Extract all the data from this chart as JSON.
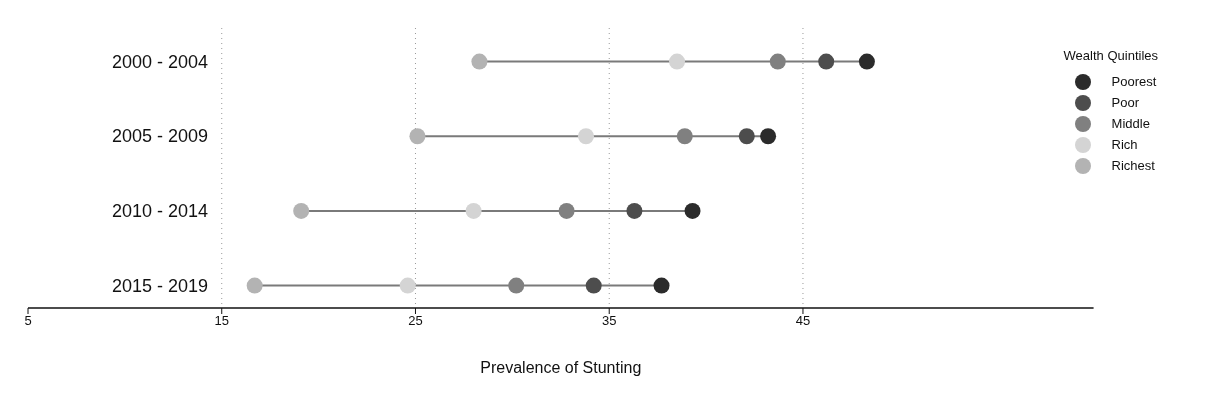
{
  "chart_data": {
    "type": "scatter",
    "orientation": "horizontal",
    "xlabel": "Prevalence of Stunting",
    "legend_title": "Wealth Quintiles",
    "categories": [
      "2000 - 2004",
      "2005 - 2009",
      "2010 - 2014",
      "2015 - 2019"
    ],
    "series": [
      {
        "name": "Poorest",
        "color": "#2b2b2b",
        "values": [
          48.3,
          43.2,
          39.3,
          37.7
        ]
      },
      {
        "name": "Poor",
        "color": "#4d4d4d",
        "values": [
          46.2,
          42.1,
          36.3,
          34.2
        ]
      },
      {
        "name": "Middle",
        "color": "#808080",
        "values": [
          43.7,
          38.9,
          32.8,
          30.2
        ]
      },
      {
        "name": "Rich",
        "color": "#d4d4d4",
        "values": [
          38.5,
          33.8,
          28.0,
          24.6
        ]
      },
      {
        "name": "Richest",
        "color": "#b3b3b3",
        "values": [
          28.3,
          25.1,
          19.1,
          16.7
        ]
      }
    ],
    "xlim": [
      5,
      60
    ],
    "xticks": [
      5,
      15,
      25,
      35,
      45
    ],
    "grid": "x",
    "legend": "right",
    "marker": "circle"
  }
}
